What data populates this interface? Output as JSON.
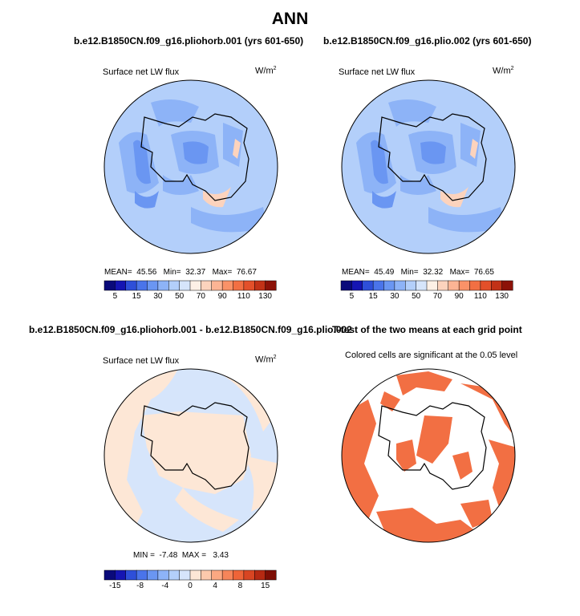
{
  "main_title": "ANN",
  "panel_top_left": {
    "case_title": "b.e12.B1850CN.f09_g16.pliohorb.001 (yrs 601-650)",
    "variable": "Surface net LW flux",
    "units_base": "W/m",
    "units_exp": "2",
    "stats": {
      "mean_label": "MEAN=",
      "mean": "45.56",
      "min_label": "Min=",
      "min": "32.37",
      "max_label": "Max=",
      "max": "76.67"
    }
  },
  "panel_top_right": {
    "case_title": "b.e12.B1850CN.f09_g16.plio.002 (yrs 601-650)",
    "variable": "Surface net LW flux",
    "units_base": "W/m",
    "units_exp": "2",
    "stats": {
      "mean_label": "MEAN=",
      "mean": "45.49",
      "min_label": "Min=",
      "min": "32.32",
      "max_label": "Max=",
      "max": "76.65"
    }
  },
  "panel_bottom_left": {
    "case_title": "b.e12.B1850CN.f09_g16.pliohorb.001 - b.e12.B1850CN.f09_g16.plio.002",
    "variable": "Surface net LW flux",
    "units_base": "W/m",
    "units_exp": "2",
    "stats_text": "MIN =  -7.48  MAX =   3.43"
  },
  "panel_bottom_right": {
    "case_title": "T-test of the two means at each grid point",
    "subtitle": "Colored cells are significant at the 0.05 level"
  },
  "colorbar_abs": {
    "colors": [
      "#0a0a7a",
      "#1515b3",
      "#2e4fd9",
      "#4a74ea",
      "#6a96f2",
      "#8db3f7",
      "#b3cffa",
      "#d6e5fb",
      "#fdf0e6",
      "#fcd3bd",
      "#fcb494",
      "#fa9268",
      "#f26f43",
      "#e3502a",
      "#c23217",
      "#8c1208"
    ],
    "tick_labels": [
      "5",
      "15",
      "30",
      "50",
      "70",
      "90",
      "110",
      "130"
    ]
  },
  "colorbar_diff": {
    "colors": [
      "#0a0a7a",
      "#1515b3",
      "#2e4fd9",
      "#4a74ea",
      "#6a96f2",
      "#8db3f7",
      "#b3cffa",
      "#d6e5fb",
      "#fde7d6",
      "#fcc9ac",
      "#fba882",
      "#f6855a",
      "#ee6438",
      "#d84522",
      "#b52912",
      "#7d0e05"
    ],
    "tick_labels": [
      "-15",
      "-8",
      "-4",
      "0",
      "4",
      "8",
      "15"
    ]
  },
  "colors": {
    "abs_background": "#b3cffa",
    "abs_mid": "#8db3f7",
    "abs_low": "#6a96f2",
    "abs_high": "#fcd3bd",
    "diff_background": "#d6e5fb",
    "diff_positive": "#fde7d6",
    "significant": "#f26f43"
  }
}
